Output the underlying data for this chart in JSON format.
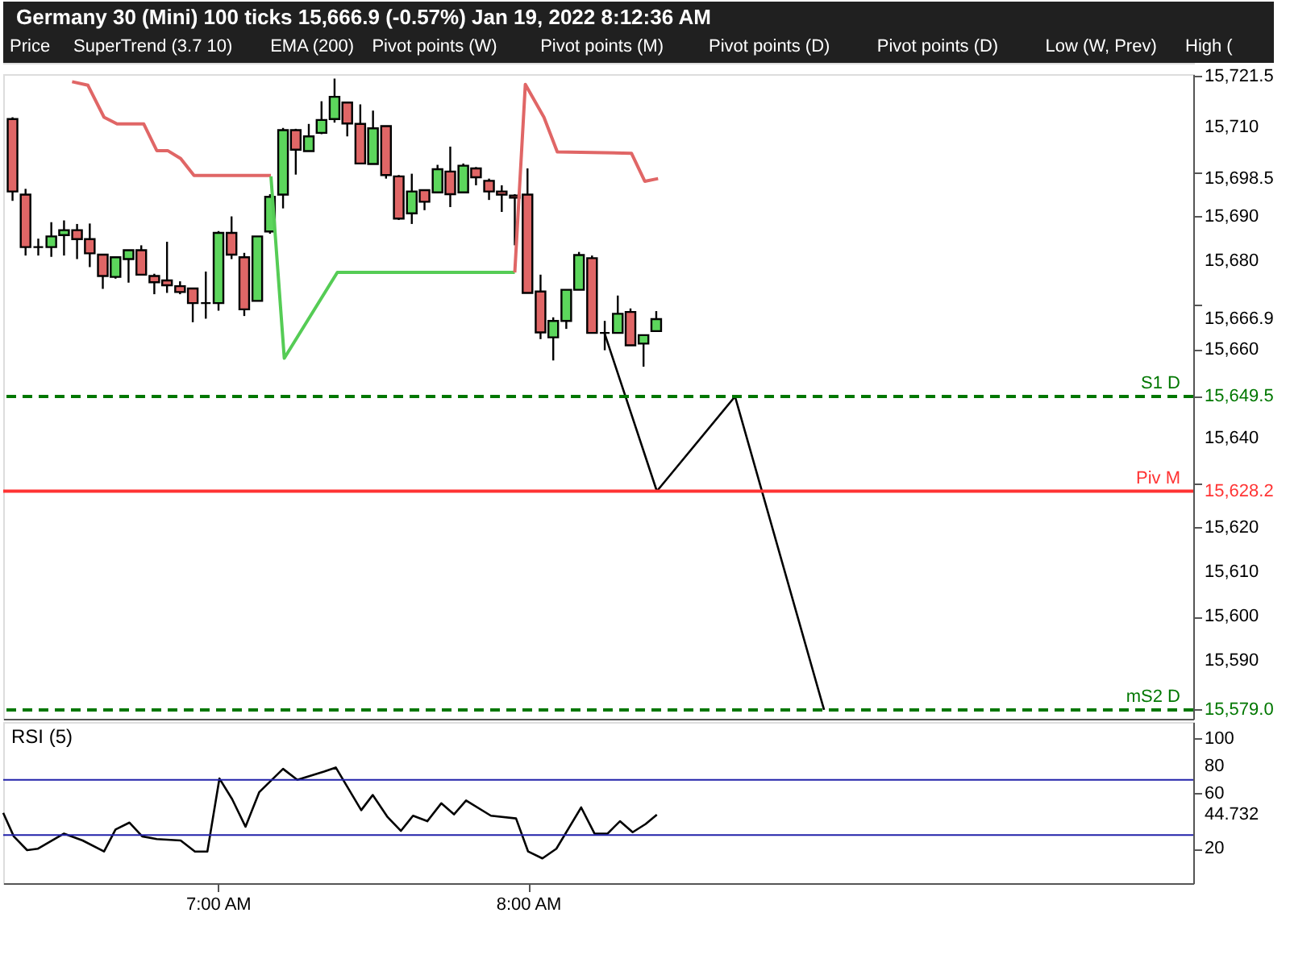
{
  "chart_data": [
    {
      "type": "candlestick",
      "title": "Germany 30 (Mini) 100 ticks 15,666.9 (-0.57%) Jan 19, 2022 8:12:36 AM",
      "annotations": [
        "Price",
        "SuperTrend (3.7 10)",
        "EMA (200)",
        "Pivot points (W)",
        "Pivot points (M)",
        "Pivot points (D)",
        "Pivot points (D)",
        "Low (W, Prev)",
        "High ("
      ],
      "xlim": [
        6.308,
        10.144
      ],
      "ylim": [
        15577,
        15722
      ],
      "yticks": [
        {
          "value": 15590,
          "label": "15,590"
        },
        {
          "value": 15600,
          "label": "15,600"
        },
        {
          "value": 15610,
          "label": "15,610"
        },
        {
          "value": 15620,
          "label": "15,620"
        },
        {
          "value": 15630,
          "label": null
        },
        {
          "value": 15640,
          "label": "15,640"
        },
        {
          "value": 15650,
          "label": null
        },
        {
          "value": 15660,
          "label": "15,660"
        },
        {
          "value": 15670,
          "label": null
        },
        {
          "value": 15680,
          "label": "15,680"
        },
        {
          "value": 15690,
          "label": "15,690"
        },
        {
          "value": 15700,
          "label": null
        },
        {
          "value": 15710,
          "label": "15,710"
        },
        {
          "value": 15721.5,
          "label": "15,721.5"
        },
        {
          "value": 15698.5,
          "label": "15,698.5"
        },
        {
          "value": 15666.9,
          "label": "15,666.9"
        },
        {
          "value": 15649.5,
          "label": "15,649.5"
        },
        {
          "value": 15628.2,
          "label": "15,628.2"
        },
        {
          "value": 15579.0,
          "label": "15,579.0"
        }
      ],
      "tick_labels": "y",
      "series": [
        {
          "type": "candlestick",
          "x": [
            6.338,
            6.38,
            6.421,
            6.463,
            6.504,
            6.546,
            6.587,
            6.629,
            6.67,
            6.712,
            6.753,
            6.795,
            6.836,
            6.878,
            6.919,
            6.961,
            7.002,
            7.044,
            7.085,
            7.127,
            7.168,
            7.21,
            7.251,
            7.293,
            7.334,
            7.376,
            7.417,
            7.459,
            7.5,
            7.542,
            7.583,
            7.625,
            7.666,
            7.708,
            7.749,
            7.791,
            7.832,
            7.874,
            7.915,
            7.957,
            7.998,
            8.04,
            8.081,
            8.123,
            8.164,
            8.206,
            8.247,
            8.289,
            8.33,
            8.372,
            8.413
          ],
          "ohlc": [
            [
              15711.9,
              15712.3,
              15693.5,
              15695.6
            ],
            [
              15694.9,
              15696.2,
              15681.2,
              15683.1
            ],
            [
              15683.1,
              15685.0,
              15681.2,
              15683.1
            ],
            [
              15683.1,
              15688.7,
              15680.9,
              15685.5
            ],
            [
              15685.8,
              15689.1,
              15681.2,
              15686.9
            ],
            [
              15686.9,
              15688.3,
              15680.4,
              15684.9
            ],
            [
              15684.9,
              15688.4,
              15678.6,
              15681.7
            ],
            [
              15681.4,
              15681.4,
              15673.7,
              15676.6
            ],
            [
              15676.4,
              15680.8,
              15676.0,
              15680.8
            ],
            [
              15680.4,
              15682.4,
              15675.1,
              15682.4
            ],
            [
              15682.4,
              15683.5,
              15676.9,
              15676.9
            ],
            [
              15676.6,
              15677.1,
              15672.5,
              15675.2
            ],
            [
              15675.6,
              15684.3,
              15672.8,
              15674.5
            ],
            [
              15674.3,
              15675.4,
              15672.5,
              15673.0
            ],
            [
              15673.8,
              15673.8,
              15666.2,
              15670.5
            ],
            [
              15670.5,
              15677.6,
              15667.0,
              15670.5
            ],
            [
              15670.5,
              15686.7,
              15668.8,
              15686.3
            ],
            [
              15686.3,
              15690.0,
              15680.4,
              15681.4
            ],
            [
              15680.8,
              15681.8,
              15667.6,
              15669.1
            ],
            [
              15671.0,
              15685.5,
              15671.0,
              15685.5
            ],
            [
              15686.6,
              15695.0,
              15686.1,
              15694.4
            ],
            [
              15694.9,
              15709.9,
              15691.8,
              15709.4
            ],
            [
              15709.4,
              15709.7,
              15699.4,
              15705.0
            ],
            [
              15704.7,
              15710.8,
              15704.7,
              15708.0
            ],
            [
              15708.8,
              15715.9,
              15708.5,
              15711.7
            ],
            [
              15711.9,
              15721.0,
              15711.1,
              15716.9
            ],
            [
              15715.6,
              15715.6,
              15708.0,
              15710.9
            ],
            [
              15710.8,
              15715.2,
              15701.9,
              15701.9
            ],
            [
              15701.8,
              15713.8,
              15701.8,
              15709.8
            ],
            [
              15710.3,
              15710.3,
              15698.5,
              15699.3
            ],
            [
              15699.0,
              15699.3,
              15689.2,
              15689.5
            ],
            [
              15690.7,
              15699.6,
              15688.3,
              15695.6
            ],
            [
              15695.9,
              15695.9,
              15691.4,
              15693.3
            ],
            [
              15695.4,
              15701.6,
              15695.4,
              15700.6
            ],
            [
              15700.1,
              15705.7,
              15692.1,
              15695.0
            ],
            [
              15695.4,
              15701.9,
              15695.4,
              15701.4
            ],
            [
              15700.8,
              15701.1,
              15697.0,
              15698.8
            ],
            [
              15698.0,
              15698.5,
              15693.7,
              15695.6
            ],
            [
              15695.6,
              15697.0,
              15691.0,
              15694.9
            ],
            [
              15694.7,
              15695.0,
              15683.5,
              15694.2
            ],
            [
              15694.9,
              15700.8,
              15672.8,
              15672.8
            ],
            [
              15673.1,
              15676.9,
              15662.4,
              15663.9
            ],
            [
              15662.8,
              15667.3,
              15657.6,
              15666.5
            ],
            [
              15666.5,
              15673.5,
              15664.7,
              15673.5
            ],
            [
              15673.5,
              15682.0,
              15673.5,
              15681.3
            ],
            [
              15680.6,
              15681.2,
              15663.8,
              15663.8
            ],
            [
              15663.8,
              15666.5,
              15659.9,
              15663.8
            ],
            [
              15663.8,
              15672.2,
              15663.8,
              15668.1
            ],
            [
              15668.5,
              15669.3,
              15661.0,
              15661.0
            ],
            [
              15661.4,
              15663.3,
              15656.2,
              15663.3
            ],
            [
              15664.2,
              15668.7,
              15664.2,
              15666.9
            ]
          ],
          "colors": [
            "#e06666",
            "#e06666",
            "#000000",
            "#5cd65c",
            "#5cd65c",
            "#e06666",
            "#e06666",
            "#e06666",
            "#5cd65c",
            "#5cd65c",
            "#e06666",
            "#e06666",
            "#e06666",
            "#e06666",
            "#e06666",
            "#000000",
            "#5cd65c",
            "#e06666",
            "#e06666",
            "#5cd65c",
            "#5cd65c",
            "#5cd65c",
            "#e06666",
            "#5cd65c",
            "#5cd65c",
            "#5cd65c",
            "#e06666",
            "#e06666",
            "#5cd65c",
            "#e06666",
            "#e06666",
            "#5cd65c",
            "#e06666",
            "#5cd65c",
            "#e06666",
            "#5cd65c",
            "#e06666",
            "#e06666",
            "#e06666",
            "#e06666",
            "#e06666",
            "#e06666",
            "#5cd65c",
            "#5cd65c",
            "#5cd65c",
            "#e06666",
            "#000000",
            "#5cd65c",
            "#e06666",
            "#5cd65c",
            "#5cd65c"
          ]
        },
        {
          "type": "line",
          "color": "#e06666",
          "x": [
            6.53,
            6.581,
            6.633,
            6.675,
            6.761,
            6.803,
            6.838,
            6.88,
            6.923,
            7.171
          ],
          "values": [
            15720.3,
            15719.5,
            15712.3,
            15710.8,
            15710.8,
            15704.8,
            15704.8,
            15703.0,
            15699.2,
            15699.2
          ]
        },
        {
          "type": "line",
          "color": "#55cc55",
          "x": [
            7.171,
            7.214,
            7.385,
            7.957
          ],
          "values": [
            15699.0,
            15658.1,
            15677.4,
            15677.4
          ]
        },
        {
          "type": "line",
          "color": "#e06666",
          "x": [
            7.957,
            7.991,
            8.051,
            8.094,
            8.333,
            8.376,
            8.419
          ],
          "values": [
            15677.4,
            15719.7,
            15712.3,
            15704.5,
            15704.2,
            15697.9,
            15698.5
          ]
        },
        {
          "type": "line",
          "color": "#000000",
          "x": [
            8.246,
            8.415,
            8.667,
            8.954
          ],
          "values": [
            15663.8,
            15628.2,
            15649.5,
            15579.0
          ]
        }
      ],
      "ref_lines": [
        {
          "axis": "y",
          "value": 15649.5,
          "label": "S1 D",
          "color": "#007700",
          "line_style": "dashed"
        },
        {
          "axis": "y",
          "value": 15628.2,
          "label": "Piv M",
          "color": "#ff3333",
          "line_style": "solid"
        },
        {
          "axis": "y",
          "value": 15579.0,
          "label": "mS2 D",
          "color": "#007700",
          "line_style": "dashed"
        }
      ]
    },
    {
      "type": "line",
      "title": "RSI (5)",
      "x": [
        6.308,
        6.342,
        6.385,
        6.419,
        6.504,
        6.564,
        6.633,
        6.67,
        6.715,
        6.756,
        6.803,
        6.88,
        6.926,
        6.966,
        7.005,
        7.046,
        7.089,
        7.133,
        7.21,
        7.256,
        7.342,
        7.38,
        7.462,
        7.499,
        7.547,
        7.59,
        7.629,
        7.675,
        7.72,
        7.761,
        7.8,
        7.88,
        7.961,
        8.0,
        8.046,
        8.091,
        8.171,
        8.214,
        8.256,
        8.296,
        8.337,
        8.379,
        8.415
      ],
      "series": [
        {
          "color": "#000000",
          "values": [
            46,
            29,
            19,
            20,
            31,
            26,
            18,
            34,
            39,
            29,
            27,
            26,
            18,
            18,
            71,
            56,
            36,
            61,
            78,
            70,
            76,
            79,
            48,
            59,
            43,
            33,
            44,
            40,
            53,
            45,
            55,
            44,
            42,
            18,
            13,
            20,
            50,
            31,
            31,
            40,
            32,
            38,
            44.732
          ]
        }
      ],
      "xlim": [
        6.308,
        10.144
      ],
      "xticks": [
        {
          "value": 7,
          "label": "7:00 AM"
        },
        {
          "value": 8,
          "label": "8:00 AM"
        }
      ],
      "ylim": [
        -5,
        112
      ],
      "yticks": [
        100,
        80,
        60,
        20,
        {
          "value": 44.732,
          "label": "44.732"
        }
      ],
      "ref_lines": [
        {
          "axis": "y",
          "value": 70,
          "color": "#2222aa",
          "line_style": "solid"
        },
        {
          "axis": "y",
          "value": 30,
          "color": "#2222aa",
          "line_style": "solid"
        }
      ]
    }
  ]
}
